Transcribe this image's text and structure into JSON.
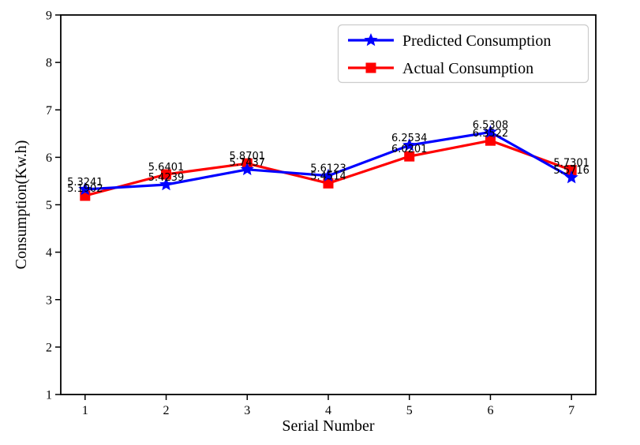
{
  "chart_data": {
    "type": "line",
    "title": "",
    "xlabel": "Serial Number",
    "ylabel": "Consumption(Kw.h)",
    "x": [
      1,
      2,
      3,
      4,
      5,
      6,
      7
    ],
    "xticks": [
      1,
      2,
      3,
      4,
      5,
      6,
      7
    ],
    "yticks": [
      1,
      2,
      3,
      4,
      5,
      6,
      7,
      8,
      9
    ],
    "xlim": [
      0.7,
      7.3
    ],
    "ylim": [
      1,
      9
    ],
    "grid": false,
    "legend_position": "upper right",
    "series": [
      {
        "name": "Predicted Consumption",
        "color": "#0000ff",
        "marker": "star",
        "values": [
          5.3241,
          5.4239,
          5.7437,
          5.6123,
          6.2534,
          6.5308,
          5.5716
        ],
        "labels": [
          "5.3241",
          "5.4239",
          "5.7437",
          "5.6123",
          "6.2534",
          "6.5308",
          "5.5716"
        ]
      },
      {
        "name": "Actual Consumption",
        "color": "#ff0000",
        "marker": "square",
        "values": [
          5.1902,
          5.6401,
          5.8701,
          5.4514,
          6.0201,
          6.3522,
          5.7301
        ],
        "labels": [
          "5.1902",
          "5.6401",
          "5.8701",
          "5.4514",
          "6.0201",
          "6.3522",
          "5.7301"
        ]
      }
    ],
    "colors": {
      "axis": "#000000",
      "label_text": "#000000",
      "legend_border": "#cccccc",
      "legend_bg": "#ffffff"
    }
  }
}
